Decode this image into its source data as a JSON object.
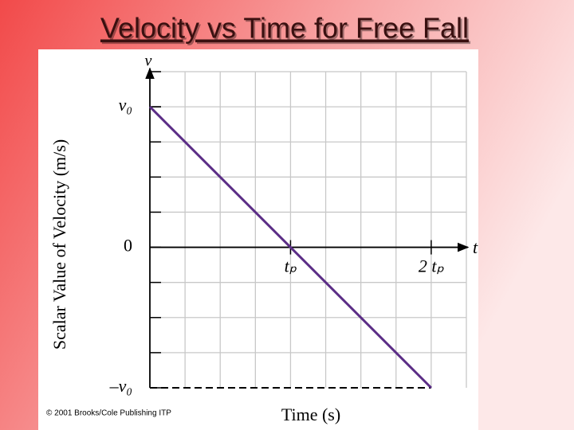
{
  "title": "Velocity vs Time for Free Fall",
  "chart_data": {
    "type": "line",
    "x_label": "Time (s)",
    "y_label": "Scalar Value of Velocity (m/s)",
    "x_axis_symbol": "t",
    "y_axis_symbol": "v",
    "x": [
      0,
      2
    ],
    "series": [
      {
        "color": "#5b2d86",
        "values": [
          1,
          -1
        ]
      }
    ],
    "xlim": [
      0,
      2.25
    ],
    "ylim": [
      -1,
      1.25
    ],
    "xticks": [
      {
        "value": 1,
        "label": "tₚ"
      },
      {
        "value": 2,
        "label": "2 tₚ"
      }
    ],
    "yticks": [
      {
        "value": 1,
        "label": "v₀"
      },
      {
        "value": 0,
        "label": "0"
      },
      {
        "value": -1,
        "label": "–v₀"
      }
    ],
    "grid": true,
    "credit": "© 2001 Brooks/Cole Publishing ITP"
  }
}
